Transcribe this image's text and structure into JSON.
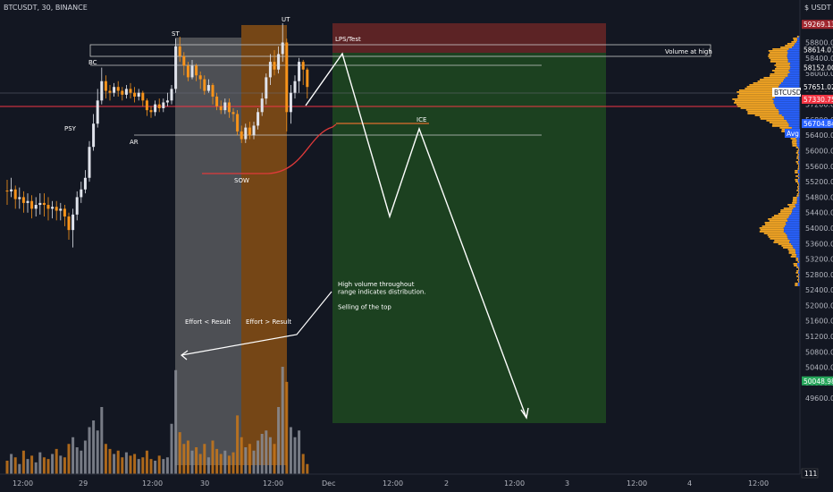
{
  "header": {
    "symbol": "BTCUSDT, 30, BINANCE",
    "currency": "USDT"
  },
  "colors": {
    "background": "#131722",
    "up": "#e0e3eb",
    "down": "#f7931a",
    "distribution_box": "#7e7e7e",
    "effort_box": "#b8650f",
    "target_green": "#1e4620",
    "stop_red": "#5c1f1f",
    "price_line": "#f23645",
    "ice_line": "#e06c2e",
    "avg_badge": "#2962ff",
    "profile_up": "#f5a623",
    "profile_down": "#2962ff"
  },
  "chart_data": {
    "type": "candlestick",
    "symbol": "BTCUSDT",
    "interval": "30",
    "exchange": "BINANCE",
    "ylim": [
      49100,
      60600
    ],
    "y_ticks": [
      49600,
      50000,
      50400,
      50800,
      51200,
      51600,
      52000,
      52400,
      52800,
      53200,
      53600,
      54000,
      54400,
      54800,
      55200,
      55600,
      56000,
      56400,
      56800,
      57200,
      57600,
      58000,
      58400,
      58800
    ],
    "x_ticks": [
      "12:00",
      "29",
      "12:00",
      "30",
      "12:00",
      "Dec",
      "12:00",
      "2",
      "12:00",
      "3",
      "12:00",
      "4",
      "12:00"
    ],
    "price_badges": [
      {
        "label": "59269.13",
        "price": 59269.13,
        "color": "#a0262e"
      },
      {
        "label": "58614.07",
        "price": 58614.07,
        "color": "#131722"
      },
      {
        "label": "58152.00",
        "price": 58152.0,
        "color": "#131722"
      },
      {
        "label": "BTCUSDT",
        "price": 57760,
        "color": "#ffffff",
        "text": "#131722"
      },
      {
        "label": "57651.02",
        "price": 57651.02,
        "color": "#131722"
      },
      {
        "label": "25:08",
        "price": 57540,
        "color": "#131722"
      },
      {
        "label": "57330.75",
        "price": 57330.75,
        "color": "#f23645"
      },
      {
        "label": "56704.84",
        "price": 56704.84,
        "color": "#2962ff"
      },
      {
        "label": "50048.98",
        "price": 50048.98,
        "color": "#26a65b"
      }
    ],
    "avg_label": "Avg",
    "volume_badge": "111",
    "candles": [
      [
        54970,
        54950,
        55250,
        54600
      ],
      [
        54950,
        55000,
        55300,
        54800
      ],
      [
        55000,
        54750,
        55100,
        54500
      ],
      [
        54750,
        54800,
        55050,
        54500
      ],
      [
        54800,
        54650,
        54950,
        54400
      ],
      [
        54650,
        54700,
        54900,
        54400
      ],
      [
        54700,
        54500,
        54850,
        54250
      ],
      [
        54500,
        54600,
        54800,
        54300
      ],
      [
        54600,
        54650,
        54900,
        54350
      ],
      [
        54650,
        54600,
        54900,
        54300
      ],
      [
        54600,
        54500,
        54800,
        54200
      ],
      [
        54500,
        54550,
        54700,
        54250
      ],
      [
        54550,
        54450,
        54700,
        54200
      ],
      [
        54450,
        54500,
        54650,
        54200
      ],
      [
        54500,
        54300,
        54600,
        54050
      ],
      [
        54300,
        53950,
        54400,
        53700
      ],
      [
        53950,
        54350,
        54500,
        53500
      ],
      [
        54350,
        54800,
        54950,
        54200
      ],
      [
        54800,
        55000,
        55200,
        54650
      ],
      [
        55000,
        55300,
        55500,
        54900
      ],
      [
        55300,
        56100,
        56250,
        55200
      ],
      [
        56100,
        56700,
        56950,
        56000
      ],
      [
        56700,
        57300,
        57600,
        56600
      ],
      [
        57300,
        57800,
        58150,
        57200
      ],
      [
        57800,
        57550,
        57950,
        57350
      ],
      [
        57550,
        57500,
        57700,
        57300
      ],
      [
        57500,
        57650,
        57750,
        57400
      ],
      [
        57650,
        57550,
        57800,
        57400
      ],
      [
        57550,
        57450,
        57650,
        57300
      ],
      [
        57450,
        57600,
        57700,
        57350
      ],
      [
        57600,
        57500,
        57750,
        57350
      ],
      [
        57500,
        57400,
        57650,
        57250
      ],
      [
        57400,
        57500,
        57600,
        57300
      ],
      [
        57500,
        57300,
        57550,
        57150
      ],
      [
        57300,
        57050,
        57350,
        56900
      ],
      [
        57050,
        57000,
        57150,
        56850
      ],
      [
        57000,
        57200,
        57300,
        56900
      ],
      [
        57200,
        57100,
        57350,
        57000
      ],
      [
        57100,
        57250,
        57350,
        57000
      ],
      [
        57250,
        57300,
        57500,
        57150
      ],
      [
        57300,
        57600,
        57700,
        57200
      ],
      [
        57600,
        58700,
        58900,
        57500
      ],
      [
        58700,
        58450,
        58950,
        58300
      ],
      [
        58450,
        58200,
        58550,
        57950
      ],
      [
        58200,
        57900,
        58300,
        57800
      ],
      [
        57900,
        58200,
        58350,
        57850
      ],
      [
        58200,
        57950,
        58250,
        57800
      ],
      [
        57950,
        57850,
        58050,
        57600
      ],
      [
        57850,
        57550,
        57950,
        57450
      ],
      [
        57550,
        57700,
        57850,
        57500
      ],
      [
        57700,
        57400,
        57750,
        57200
      ],
      [
        57400,
        57150,
        57500,
        57050
      ],
      [
        57150,
        57050,
        57300,
        56950
      ],
      [
        57050,
        57250,
        57350,
        56950
      ],
      [
        57250,
        57000,
        57350,
        56850
      ],
      [
        57000,
        56950,
        57100,
        56750
      ],
      [
        56950,
        56500,
        57050,
        56400
      ],
      [
        56500,
        56300,
        56650,
        56200
      ],
      [
        56300,
        56600,
        56700,
        56200
      ],
      [
        56600,
        56400,
        56750,
        56300
      ],
      [
        56400,
        56650,
        56750,
        56300
      ],
      [
        56650,
        57000,
        57100,
        56550
      ],
      [
        57000,
        57350,
        57500,
        56900
      ],
      [
        57350,
        57900,
        58000,
        57200
      ],
      [
        57900,
        58300,
        58500,
        57700
      ],
      [
        58300,
        58100,
        58600,
        57950
      ],
      [
        58100,
        58500,
        58700,
        58000
      ],
      [
        58500,
        58800,
        59300,
        58300
      ],
      [
        58800,
        57000,
        58900,
        56500
      ],
      [
        57000,
        57500,
        57700,
        56700
      ],
      [
        57500,
        57800,
        57950,
        57350
      ],
      [
        57800,
        58300,
        58400,
        57500
      ],
      [
        58300,
        58100,
        58350,
        57700
      ],
      [
        58100,
        57650,
        58150,
        57350
      ]
    ],
    "volumes": [
      8,
      12,
      10,
      6,
      14,
      9,
      11,
      7,
      13,
      10,
      9,
      12,
      15,
      11,
      10,
      18,
      22,
      16,
      14,
      20,
      28,
      32,
      26,
      40,
      18,
      15,
      12,
      14,
      10,
      13,
      11,
      12,
      9,
      10,
      14,
      9,
      8,
      11,
      9,
      10,
      30,
      62,
      25,
      18,
      20,
      14,
      16,
      12,
      18,
      10,
      20,
      15,
      12,
      14,
      11,
      13,
      35,
      22,
      16,
      18,
      14,
      20,
      24,
      26,
      22,
      18,
      40,
      64,
      55,
      28,
      22,
      26,
      12,
      6
    ],
    "annotations": [
      {
        "text": "PSY",
        "price": 56830,
        "candle": 21
      },
      {
        "text": "BC",
        "price": 58260,
        "candle": 23
      },
      {
        "text": "AR",
        "price": 56450,
        "candle": 33
      },
      {
        "text": "ST",
        "price": 58980,
        "candle": 41
      },
      {
        "text": "SOW",
        "price": 55710,
        "candle": 56
      },
      {
        "text": "UT",
        "price": 59470,
        "candle": 67
      },
      {
        "text": "LPS/Test",
        "price": 58900,
        "candle": 78
      },
      {
        "text": "ICE",
        "price": 57160,
        "candle": 95
      },
      {
        "text": "Volume at high",
        "price": 58500,
        "candle": 120
      }
    ],
    "text_labels": {
      "effort_lt": "Effort < Result",
      "effort_gt": "Effort > Result",
      "note_lines": [
        "High volume throughout",
        "range indicates distribution.",
        "",
        "Selling of the top"
      ]
    },
    "levels": {
      "bc": 58614.07,
      "high_box": 58700,
      "ar": 56704.84,
      "current": 57330.75,
      "ice": 57090
    },
    "projection": [
      [
        57700,
        "58350"
      ]
    ]
  }
}
